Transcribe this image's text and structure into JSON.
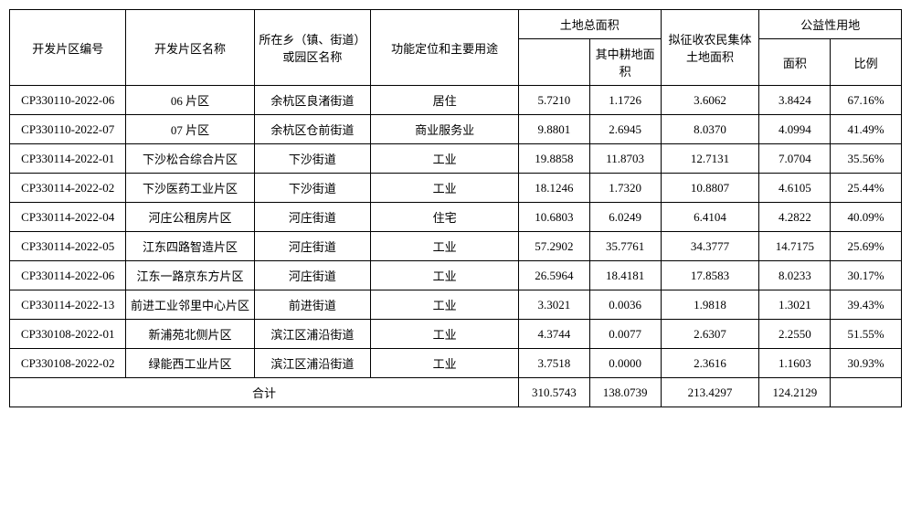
{
  "table": {
    "headers": {
      "id": "开发片区编号",
      "name": "开发片区名称",
      "location": "所在乡（镇、街道）或园区名称",
      "function": "功能定位和主要用途",
      "total_area_group": "土地总面积",
      "farmland_area": "其中耕地面积",
      "collective_area": "拟征收农民集体土地面积",
      "public_group": "公益性用地",
      "public_area": "面积",
      "public_ratio": "比例"
    },
    "rows": [
      {
        "id": "CP330110-2022-06",
        "name": "06 片区",
        "location": "余杭区良渚街道",
        "function": "居住",
        "total_area": "5.7210",
        "farmland": "1.1726",
        "collective": "3.6062",
        "public_area": "3.8424",
        "public_ratio": "67.16%"
      },
      {
        "id": "CP330110-2022-07",
        "name": "07 片区",
        "location": "余杭区仓前街道",
        "function": "商业服务业",
        "total_area": "9.8801",
        "farmland": "2.6945",
        "collective": "8.0370",
        "public_area": "4.0994",
        "public_ratio": "41.49%"
      },
      {
        "id": "CP330114-2022-01",
        "name": "下沙松合综合片区",
        "location": "下沙街道",
        "function": "工业",
        "total_area": "19.8858",
        "farmland": "11.8703",
        "collective": "12.7131",
        "public_area": "7.0704",
        "public_ratio": "35.56%"
      },
      {
        "id": "CP330114-2022-02",
        "name": "下沙医药工业片区",
        "location": "下沙街道",
        "function": "工业",
        "total_area": "18.1246",
        "farmland": "1.7320",
        "collective": "10.8807",
        "public_area": "4.6105",
        "public_ratio": "25.44%"
      },
      {
        "id": "CP330114-2022-04",
        "name": "河庄公租房片区",
        "location": "河庄街道",
        "function": "住宅",
        "total_area": "10.6803",
        "farmland": "6.0249",
        "collective": "6.4104",
        "public_area": "4.2822",
        "public_ratio": "40.09%"
      },
      {
        "id": "CP330114-2022-05",
        "name": "江东四路智造片区",
        "location": "河庄街道",
        "function": "工业",
        "total_area": "57.2902",
        "farmland": "35.7761",
        "collective": "34.3777",
        "public_area": "14.7175",
        "public_ratio": "25.69%"
      },
      {
        "id": "CP330114-2022-06",
        "name": "江东一路京东方片区",
        "location": "河庄街道",
        "function": "工业",
        "total_area": "26.5964",
        "farmland": "18.4181",
        "collective": "17.8583",
        "public_area": "8.0233",
        "public_ratio": "30.17%"
      },
      {
        "id": "CP330114-2022-13",
        "name": "前进工业邻里中心片区",
        "location": "前进街道",
        "function": "工业",
        "total_area": "3.3021",
        "farmland": "0.0036",
        "collective": "1.9818",
        "public_area": "1.3021",
        "public_ratio": "39.43%"
      },
      {
        "id": "CP330108-2022-01",
        "name": "新浦苑北侧片区",
        "location": "滨江区浦沿街道",
        "function": "工业",
        "total_area": "4.3744",
        "farmland": "0.0077",
        "collective": "2.6307",
        "public_area": "2.2550",
        "public_ratio": "51.55%"
      },
      {
        "id": "CP330108-2022-02",
        "name": "绿能西工业片区",
        "location": "滨江区浦沿街道",
        "function": "工业",
        "total_area": "3.7518",
        "farmland": "0.0000",
        "collective": "2.3616",
        "public_area": "1.1603",
        "public_ratio": "30.93%"
      }
    ],
    "total": {
      "label": "合计",
      "total_area": "310.5743",
      "farmland": "138.0739",
      "collective": "213.4297",
      "public_area": "124.2129",
      "public_ratio": ""
    }
  }
}
